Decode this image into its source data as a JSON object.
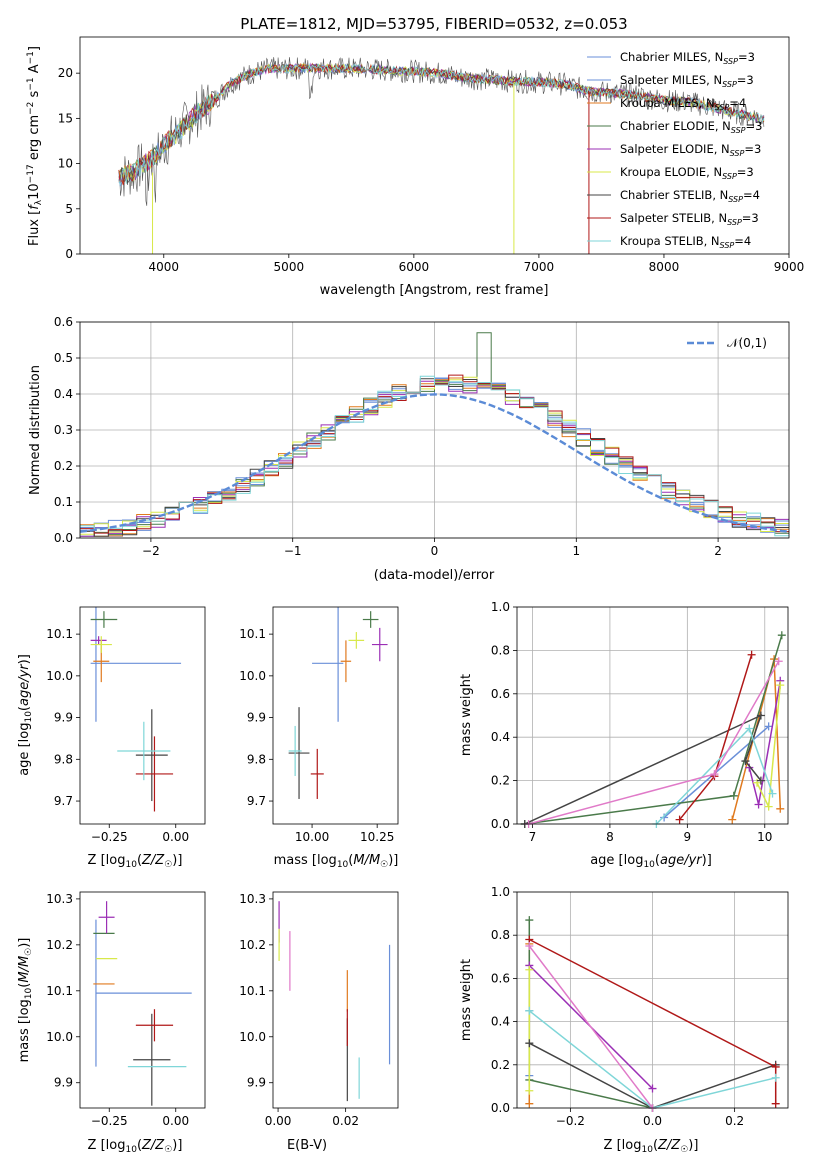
{
  "colors": {
    "Chabrier MILES": "#6a8fd8",
    "Salpeter MILES": "#6a8fd8",
    "Kroupa MILES": "#e07a1f",
    "Chabrier ELODIE": "#4a7a4a",
    "Salpeter ELODIE": "#9b2fb5",
    "Kroupa ELODIE": "#d8e84a",
    "Chabrier STELIB": "#444444",
    "Salpeter STELIB": "#b01818",
    "Kroupa STELIB": "#7fd6d8",
    "normal": "#5b8bd6",
    "pink": "#e07ac8"
  },
  "chart_data": [
    {
      "id": "spectrum",
      "type": "line",
      "title": "PLATE=1812, MJD=53795, FIBERID=0532, z=0.053",
      "xlabel": "wavelength [Angstrom, rest frame]",
      "ylabel": "Flux [f_λ10^-17 erg cm^-2 s^-1 A^-1]",
      "xlim": [
        3330,
        9000
      ],
      "ylim": [
        0,
        24
      ],
      "xticks": [
        4000,
        5000,
        6000,
        7000,
        8000,
        9000
      ],
      "yticks": [
        0,
        5,
        10,
        15,
        20
      ],
      "legend_position": "upper right",
      "legend": [
        {
          "base": "Chabrier MILES, N",
          "sub": "SSP",
          "tail": "=3"
        },
        {
          "base": "Salpeter MILES, N",
          "sub": "SSP",
          "tail": "=3"
        },
        {
          "base": "Kroupa MILES, N",
          "sub": "SSP",
          "tail": "=4"
        },
        {
          "base": "Chabrier ELODIE, N",
          "sub": "SSP",
          "tail": "=3"
        },
        {
          "base": "Salpeter ELODIE, N",
          "sub": "SSP",
          "tail": "=3"
        },
        {
          "base": "Kroupa ELODIE, N",
          "sub": "SSP",
          "tail": "=3"
        },
        {
          "base": "Chabrier STELIB, N",
          "sub": "SSP",
          "tail": "=4"
        },
        {
          "base": "Salpeter STELIB, N",
          "sub": "SSP",
          "tail": "=3"
        },
        {
          "base": "Kroupa STELIB, N",
          "sub": "SSP",
          "tail": "=4"
        }
      ],
      "continuum": {
        "x": [
          3640,
          3750,
          3900,
          4000,
          4150,
          4300,
          4400,
          4550,
          4700,
          4850,
          5000,
          5200,
          5400,
          5600,
          5800,
          6000,
          6200,
          6400,
          6600,
          6800,
          7000,
          7200,
          7400,
          7600,
          7800,
          8000,
          8200,
          8400,
          8600,
          8800
        ],
        "y": [
          8.5,
          9.0,
          10.5,
          12.0,
          14.0,
          16.0,
          17.0,
          19.0,
          20.0,
          20.5,
          20.5,
          20.6,
          20.5,
          20.5,
          20.3,
          20.2,
          20.0,
          19.5,
          19.3,
          19.1,
          19.0,
          18.8,
          18.0,
          17.8,
          17.5,
          17.0,
          16.8,
          16.2,
          15.5,
          15.0
        ]
      },
      "drop_lines": [
        {
          "series": "Kroupa ELODIE",
          "x": 3910,
          "y_from": 9.0
        },
        {
          "series": "Kroupa ELODIE",
          "x": 6800,
          "y_from": 19.0
        },
        {
          "series": "Salpeter STELIB",
          "x": 7400,
          "y_from": 18.0
        }
      ]
    },
    {
      "id": "residuals",
      "type": "histogram",
      "xlabel": "(data-model)/error",
      "ylabel": "Normed distribution",
      "xlim": [
        -2.5,
        2.5
      ],
      "ylim": [
        0,
        0.6
      ],
      "xticks": [
        -2,
        -1,
        0,
        1,
        2
      ],
      "yticks": [
        0.0,
        0.1,
        0.2,
        0.3,
        0.4,
        0.5,
        0.6
      ],
      "grid": true,
      "legend": "𝒩(0,1)",
      "legend_position": "upper right",
      "bin_edges_start": -2.5,
      "bin_width": 0.1,
      "n_bins": 50,
      "gaussian": {
        "mean": 0,
        "sigma": 1
      }
    },
    {
      "id": "age_vs_Z",
      "type": "errorbar",
      "xlabel": "Z [log10(Z/Z☉)]",
      "ylabel": "age [log10(age/yr)]",
      "xlim": [
        -0.36,
        0.11
      ],
      "ylim": [
        9.645,
        10.165
      ],
      "xticks": [
        -0.25,
        0.0
      ],
      "xticklabels": [
        "−0.25",
        "0.00"
      ],
      "yticks": [
        9.7,
        9.8,
        9.9,
        10.0,
        10.1
      ],
      "points": [
        {
          "series": "Chabrier MILES",
          "x": -0.15,
          "y": 10.03,
          "xerr": 0.17,
          "yerr": 0.0
        },
        {
          "series": "Salpeter MILES",
          "x": -0.3,
          "y": 10.03,
          "xerr": 0.0,
          "yerr": 0.14
        },
        {
          "series": "Kroupa MILES",
          "x": -0.28,
          "y": 10.035,
          "xerr": 0.03,
          "yerr": 0.05
        },
        {
          "series": "Chabrier ELODIE",
          "x": -0.27,
          "y": 10.135,
          "xerr": 0.05,
          "yerr": 0.02
        },
        {
          "series": "Salpeter ELODIE",
          "x": -0.29,
          "y": 10.085,
          "xerr": 0.03,
          "yerr": 0.01
        },
        {
          "series": "Kroupa ELODIE",
          "x": -0.28,
          "y": 10.075,
          "xerr": 0.04,
          "yerr": 0.02
        },
        {
          "series": "Chabrier STELIB",
          "x": -0.09,
          "y": 9.81,
          "xerr": 0.06,
          "yerr": 0.11
        },
        {
          "series": "Salpeter STELIB",
          "x": -0.08,
          "y": 9.765,
          "xerr": 0.07,
          "yerr": 0.09
        },
        {
          "series": "Kroupa STELIB",
          "x": -0.12,
          "y": 9.82,
          "xerr": 0.1,
          "yerr": 0.07
        }
      ]
    },
    {
      "id": "age_vs_mass",
      "type": "errorbar",
      "xlabel": "mass [log10(M/M☉)]",
      "xlim": [
        9.85,
        10.33
      ],
      "ylim": [
        9.645,
        10.165
      ],
      "xticks": [
        10.0,
        10.25
      ],
      "xticklabels": [
        "10.00",
        "10.25"
      ],
      "yticks": [
        9.7,
        9.8,
        9.9,
        10.0,
        10.1
      ],
      "points": [
        {
          "series": "Chabrier MILES",
          "x": 10.06,
          "y": 10.03,
          "xerr": 0.06,
          "yerr": 0.0
        },
        {
          "series": "Salpeter MILES",
          "x": 10.1,
          "y": 10.03,
          "xerr": 0.0,
          "yerr": 0.14
        },
        {
          "series": "Kroupa MILES",
          "x": 10.13,
          "y": 10.035,
          "xerr": 0.02,
          "yerr": 0.05
        },
        {
          "series": "Chabrier ELODIE",
          "x": 10.225,
          "y": 10.135,
          "xerr": 0.03,
          "yerr": 0.02
        },
        {
          "series": "Salpeter ELODIE",
          "x": 10.26,
          "y": 10.075,
          "xerr": 0.03,
          "yerr": 0.04
        },
        {
          "series": "Kroupa ELODIE",
          "x": 10.17,
          "y": 10.085,
          "xerr": 0.03,
          "yerr": 0.02
        },
        {
          "series": "Chabrier STELIB",
          "x": 9.95,
          "y": 9.815,
          "xerr": 0.04,
          "yerr": 0.11
        },
        {
          "series": "Salpeter STELIB",
          "x": 10.02,
          "y": 9.765,
          "xerr": 0.025,
          "yerr": 0.06
        },
        {
          "series": "Kroupa STELIB",
          "x": 9.935,
          "y": 9.82,
          "xerr": 0.025,
          "yerr": 0.06
        }
      ]
    },
    {
      "id": "weight_vs_age",
      "type": "line",
      "xlabel": "age [log10(age/yr)]",
      "ylabel": "mass weight",
      "xlim": [
        6.8,
        10.3
      ],
      "ylim": [
        0,
        1
      ],
      "xticks": [
        7,
        8,
        9,
        10
      ],
      "yticks": [
        0.0,
        0.2,
        0.4,
        0.6,
        0.8,
        1.0
      ],
      "grid": true,
      "series": [
        {
          "series": "Chabrier MILES",
          "x": [
            8.7,
            10.05
          ],
          "y": [
            0.03,
            0.45
          ]
        },
        {
          "series": "Kroupa MILES",
          "x": [
            9.58,
            10.12,
            10.2
          ],
          "y": [
            0.02,
            0.76,
            0.07
          ]
        },
        {
          "series": "Chabrier ELODIE",
          "x": [
            6.9,
            9.6,
            10.22
          ],
          "y": [
            0.0,
            0.13,
            0.87
          ]
        },
        {
          "series": "Salpeter ELODIE",
          "x": [
            9.8,
            9.92,
            10.2
          ],
          "y": [
            0.26,
            0.09,
            0.66
          ]
        },
        {
          "series": "Kroupa ELODIE",
          "x": [
            9.9,
            10.05,
            10.2
          ],
          "y": [
            0.19,
            0.08,
            0.64
          ]
        },
        {
          "series": "Chabrier STELIB",
          "x": [
            6.9,
            9.95,
            9.75,
            9.95
          ],
          "y": [
            0.0,
            0.5,
            0.29,
            0.2
          ]
        },
        {
          "series": "Salpeter STELIB",
          "x": [
            8.9,
            9.35,
            9.83
          ],
          "y": [
            0.02,
            0.22,
            0.78
          ]
        },
        {
          "series": "Kroupa STELIB",
          "x": [
            8.6,
            9.8,
            10.1
          ],
          "y": [
            0.0,
            0.44,
            0.14
          ]
        },
        {
          "series": "pink",
          "x": [
            6.95,
            9.35,
            10.18
          ],
          "y": [
            0.0,
            0.23,
            0.75
          ]
        }
      ]
    },
    {
      "id": "mass_vs_Z",
      "type": "errorbar",
      "xlabel": "Z [log10(Z/Z☉)]",
      "ylabel": "mass [log10(M/M☉)]",
      "xlim": [
        -0.36,
        0.11
      ],
      "ylim": [
        9.845,
        10.315
      ],
      "xticks": [
        -0.25,
        0.0
      ],
      "xticklabels": [
        "−0.25",
        "0.00"
      ],
      "yticks": [
        9.9,
        10.0,
        10.1,
        10.2,
        10.3
      ],
      "points": [
        {
          "series": "Chabrier MILES",
          "x": -0.12,
          "y": 10.095,
          "xerr": 0.18,
          "yerr": 0.0
        },
        {
          "series": "Salpeter MILES",
          "x": -0.3,
          "y": 10.095,
          "xerr": 0.0,
          "yerr": 0.16
        },
        {
          "series": "Kroupa MILES",
          "x": -0.27,
          "y": 10.115,
          "xerr": 0.04,
          "yerr": 0.0
        },
        {
          "series": "Chabrier ELODIE",
          "x": -0.27,
          "y": 10.225,
          "xerr": 0.04,
          "yerr": 0.0
        },
        {
          "series": "Salpeter ELODIE",
          "x": -0.26,
          "y": 10.26,
          "xerr": 0.03,
          "yerr": 0.035
        },
        {
          "series": "Kroupa ELODIE",
          "x": -0.26,
          "y": 10.17,
          "xerr": 0.04,
          "yerr": 0.0
        },
        {
          "series": "Chabrier STELIB",
          "x": -0.09,
          "y": 9.95,
          "xerr": 0.07,
          "yerr": 0.1
        },
        {
          "series": "Salpeter STELIB",
          "x": -0.08,
          "y": 10.025,
          "xerr": 0.07,
          "yerr": 0.035
        },
        {
          "series": "Kroupa STELIB",
          "x": -0.07,
          "y": 9.935,
          "xerr": 0.11,
          "yerr": 0.0
        }
      ]
    },
    {
      "id": "mass_vs_ebv",
      "type": "errorbar",
      "xlabel": "E(B-V)",
      "xlim": [
        -0.0015,
        0.0355
      ],
      "ylim": [
        9.845,
        10.315
      ],
      "xticks": [
        0.0,
        0.02
      ],
      "xticklabels": [
        "0.00",
        "0.02"
      ],
      "yticks": [
        9.9,
        10.0,
        10.1,
        10.2,
        10.3
      ],
      "points": [
        {
          "series": "Chabrier MILES",
          "x": 0.033,
          "y": 10.07,
          "xerr": 0,
          "yerr": 0.13
        },
        {
          "series": "Kroupa MILES",
          "x": 0.0205,
          "y": 10.1,
          "xerr": 0,
          "yerr": 0.045
        },
        {
          "series": "Salpeter ELODIE",
          "x": 0.0003,
          "y": 10.25,
          "xerr": 0,
          "yerr": 0.045
        },
        {
          "series": "Kroupa ELODIE",
          "x": 0.0003,
          "y": 10.2,
          "xerr": 0,
          "yerr": 0.035
        },
        {
          "series": "pink",
          "x": 0.0035,
          "y": 10.165,
          "xerr": 0,
          "yerr": 0.065
        },
        {
          "series": "Chabrier STELIB",
          "x": 0.0205,
          "y": 9.95,
          "xerr": 0,
          "yerr": 0.09
        },
        {
          "series": "Salpeter STELIB",
          "x": 0.0205,
          "y": 10.02,
          "xerr": 0,
          "yerr": 0.04
        },
        {
          "series": "Kroupa STELIB",
          "x": 0.024,
          "y": 9.91,
          "xerr": 0,
          "yerr": 0.045
        }
      ]
    },
    {
      "id": "weight_vs_Z",
      "type": "line",
      "xlabel": "Z [log10(Z/Z☉)]",
      "ylabel": "mass weight",
      "xlim": [
        -0.33,
        0.33
      ],
      "ylim": [
        0,
        1
      ],
      "xticks": [
        -0.2,
        0.0,
        0.2
      ],
      "xticklabels": [
        "−0.2",
        "0.0",
        "0.2"
      ],
      "yticks": [
        0.0,
        0.2,
        0.4,
        0.6,
        0.8,
        1.0
      ],
      "grid": true,
      "series": [
        {
          "series": "Chabrier MILES",
          "x": [
            -0.3,
            -0.3
          ],
          "y": [
            0.15,
            0.45
          ]
        },
        {
          "series": "Kroupa MILES",
          "x": [
            -0.3,
            -0.3
          ],
          "y": [
            0.02,
            0.76
          ]
        },
        {
          "series": "Chabrier ELODIE",
          "x": [
            -0.3,
            -0.3,
            0.0
          ],
          "y": [
            0.87,
            0.13,
            0.0
          ]
        },
        {
          "series": "Salpeter ELODIE",
          "x": [
            -0.3,
            0.0
          ],
          "y": [
            0.66,
            0.09
          ]
        },
        {
          "series": "Kroupa ELODIE",
          "x": [
            -0.3,
            -0.3
          ],
          "y": [
            0.08,
            0.64
          ]
        },
        {
          "series": "Chabrier STELIB",
          "x": [
            -0.3,
            0.0,
            0.3
          ],
          "y": [
            0.3,
            0.0,
            0.2
          ]
        },
        {
          "series": "Salpeter STELIB",
          "x": [
            -0.3,
            0.3,
            0.3
          ],
          "y": [
            0.78,
            0.19,
            0.02
          ]
        },
        {
          "series": "Kroupa STELIB",
          "x": [
            -0.3,
            0.0,
            0.3
          ],
          "y": [
            0.45,
            0.0,
            0.14
          ]
        },
        {
          "series": "pink",
          "x": [
            -0.3,
            0.0
          ],
          "y": [
            0.75,
            0.0
          ]
        }
      ]
    }
  ]
}
